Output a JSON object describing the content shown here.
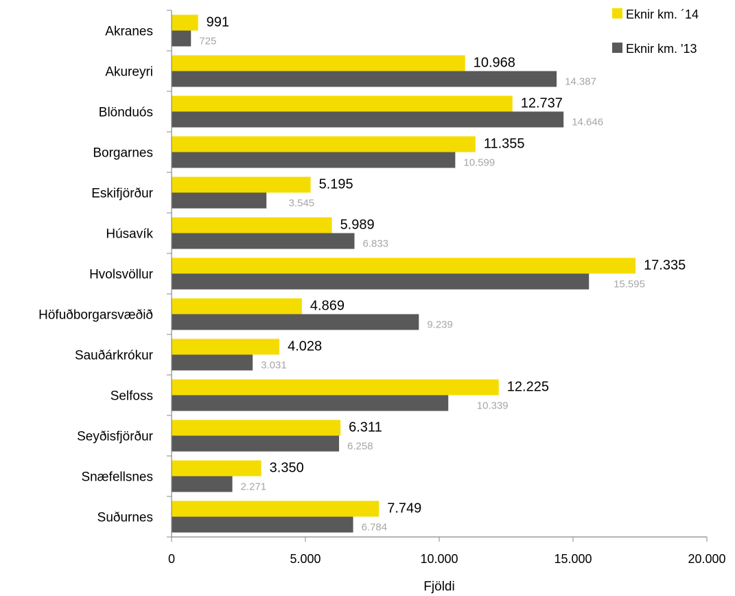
{
  "chart_data": {
    "type": "bar",
    "orientation": "horizontal",
    "categories": [
      "Akranes",
      "Akureyri",
      "Blönduós",
      "Borgarnes",
      "Eskifjörður",
      "Húsavík",
      "Hvolsvöllur",
      "Höfuðborgarsvæðið",
      "Sauðárkrókur",
      "Selfoss",
      "Seyðisfjörður",
      "Snæfellsnes",
      "Suðurnes"
    ],
    "series": [
      {
        "name": "Eknir km. ´14",
        "color": "#f5dc00",
        "values": [
          991,
          10968,
          12737,
          11355,
          5195,
          5989,
          17335,
          4869,
          4028,
          12225,
          6311,
          3350,
          7749
        ],
        "labels": [
          "991",
          "10.968",
          "12.737",
          "11.355",
          "5.195",
          "5.989",
          "17.335",
          "4.869",
          "4.028",
          "12.225",
          "6.311",
          "3.350",
          "7.749"
        ]
      },
      {
        "name": "Eknir km. '13",
        "color": "#595959",
        "values": [
          725,
          14387,
          14646,
          10599,
          3545,
          6833,
          15595,
          9239,
          3031,
          10339,
          6258,
          2271,
          6784
        ],
        "labels": [
          "725",
          "14.387",
          "14.646",
          "10.599",
          "3.545",
          "6.833",
          "15.595",
          "9.239",
          "3.031",
          "10.339",
          "6.258",
          "2.271",
          "6.784"
        ]
      }
    ],
    "xlabel": "Fjöldi",
    "xlim": [
      0,
      20000
    ],
    "xticks": [
      0,
      5000,
      10000,
      15000,
      20000
    ],
    "xtick_labels": [
      "0",
      "5.000",
      "10.000",
      "15.000",
      "20.000"
    ],
    "grid": false,
    "legend_position": "top-right"
  }
}
